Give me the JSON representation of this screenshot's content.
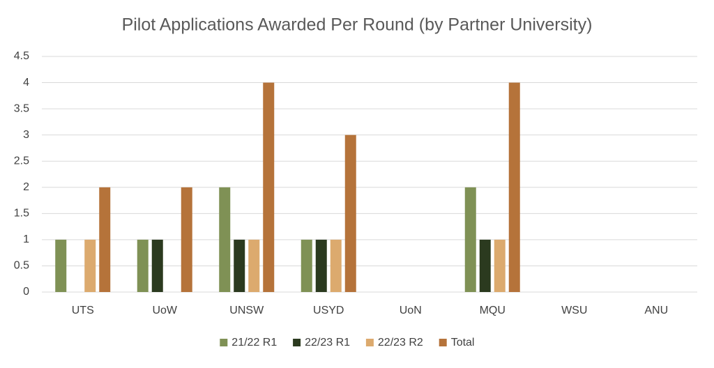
{
  "chart_data": {
    "type": "bar",
    "title": "Pilot Applications Awarded Per Round (by Partner University)",
    "categories": [
      "UTS",
      "UoW",
      "UNSW",
      "USYD",
      "UoN",
      "MQU",
      "WSU",
      "ANU"
    ],
    "series": [
      {
        "name": "21/22 R1",
        "color": "#7f9155",
        "values": [
          1,
          1,
          2,
          1,
          0,
          2,
          0,
          0
        ]
      },
      {
        "name": "22/23 R1",
        "color": "#2b3a1f",
        "values": [
          0,
          1,
          1,
          1,
          0,
          1,
          0,
          0
        ]
      },
      {
        "name": "22/23 R2",
        "color": "#dcaa6e",
        "values": [
          1,
          0,
          1,
          1,
          0,
          1,
          0,
          0
        ]
      },
      {
        "name": "Total",
        "color": "#b5733a",
        "values": [
          2,
          2,
          4,
          3,
          0,
          4,
          0,
          0
        ]
      }
    ],
    "ylim": [
      0,
      4.5
    ],
    "yticks": [
      0,
      0.5,
      1,
      1.5,
      2,
      2.5,
      3,
      3.5,
      4,
      4.5
    ],
    "grid": true,
    "legend": "bottom"
  }
}
